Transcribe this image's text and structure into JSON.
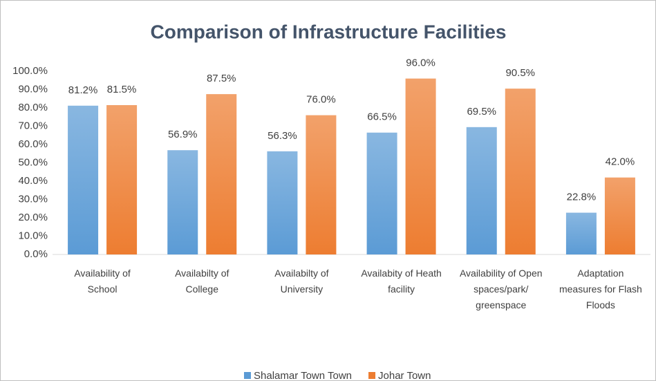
{
  "chart_data": {
    "type": "bar",
    "title": "Comparison of Infrastructure Facilities",
    "categories": [
      "Availability of School",
      "Availabilty of College",
      "Availabilty of University",
      "Availabity of Heath facility",
      "Availability of Open spaces/park/ greenspace",
      "Adaptation measures for Flash Floods"
    ],
    "series": [
      {
        "name": "Shalamar Town Town",
        "color": "#5b9bd5",
        "values": [
          81.2,
          56.9,
          56.3,
          66.5,
          69.5,
          22.8
        ],
        "value_labels": [
          "81.2%",
          "56.9%",
          "56.3%",
          "66.5%",
          "69.5%",
          "22.8%"
        ]
      },
      {
        "name": "Johar Town",
        "color": "#ed7d31",
        "values": [
          81.5,
          87.5,
          76.0,
          96.0,
          90.5,
          42.0
        ],
        "value_labels": [
          "81.5%",
          "87.5%",
          "76.0%",
          "96.0%",
          "90.5%",
          "42.0%"
        ]
      }
    ],
    "ylim": [
      0,
      100
    ],
    "yticks": [
      {
        "value": 0,
        "label": "0.0%"
      },
      {
        "value": 10,
        "label": "10.0%"
      },
      {
        "value": 20,
        "label": "20.0%"
      },
      {
        "value": 30,
        "label": "30.0%"
      },
      {
        "value": 40,
        "label": "40.0%"
      },
      {
        "value": 50,
        "label": "50.0%"
      },
      {
        "value": 60,
        "label": "60.0%"
      },
      {
        "value": 70,
        "label": "70.0%"
      },
      {
        "value": 80,
        "label": "80.0%"
      },
      {
        "value": 90,
        "label": "90.0%"
      },
      {
        "value": 100,
        "label": "100.0%"
      }
    ],
    "legend": "bottom"
  }
}
